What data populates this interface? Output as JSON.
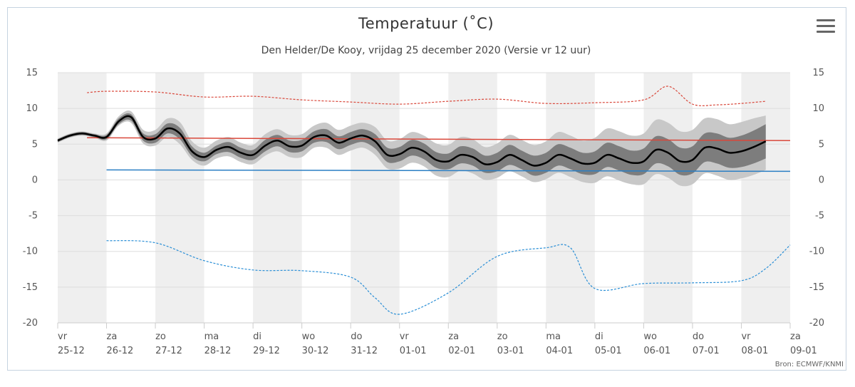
{
  "header": {
    "title": "Temperatuur (˚C)",
    "subtitle": "Den Helder/De Kooy, vrijdag 25 december 2020 (Versie vr 12 uur)"
  },
  "footer": {
    "source": "Bron: ECMWF/KNMI"
  },
  "colors": {
    "ens_outer": "#c8c8c8",
    "ens_inner": "#7d7d7d",
    "median": "#000000",
    "max_record": "#d9483b",
    "min_record": "#2b8fd6",
    "normal_max": "#d9483b",
    "normal_min": "#2b7fc4",
    "shade": "#efefef"
  },
  "chart_data": {
    "type": "line",
    "title": "Temperatuur (˚C)",
    "subtitle": "Den Helder/De Kooy, vrijdag 25 december 2020 (Versie vr 12 uur)",
    "ylim": [
      -20,
      15
    ],
    "yticks": [
      15,
      10,
      5,
      0,
      -5,
      -10,
      -15,
      -20
    ],
    "xlim": [
      0,
      15
    ],
    "xticks": [
      {
        "day": "vr",
        "date": "25-12"
      },
      {
        "day": "za",
        "date": "26-12"
      },
      {
        "day": "zo",
        "date": "27-12"
      },
      {
        "day": "ma",
        "date": "28-12"
      },
      {
        "day": "di",
        "date": "29-12"
      },
      {
        "day": "wo",
        "date": "30-12"
      },
      {
        "day": "do",
        "date": "31-12"
      },
      {
        "day": "vr",
        "date": "01-01"
      },
      {
        "day": "za",
        "date": "02-01"
      },
      {
        "day": "zo",
        "date": "03-01"
      },
      {
        "day": "ma",
        "date": "04-01"
      },
      {
        "day": "di",
        "date": "05-01"
      },
      {
        "day": "wo",
        "date": "06-01"
      },
      {
        "day": "do",
        "date": "07-01"
      },
      {
        "day": "vr",
        "date": "08-01"
      },
      {
        "day": "za",
        "date": "09-01"
      }
    ],
    "weekend_shaded_days": [
      0,
      2,
      4,
      6,
      8,
      10,
      12,
      14
    ],
    "series": [
      {
        "key": "median",
        "x": [
          0,
          0.25,
          0.5,
          0.75,
          1,
          1.25,
          1.5,
          1.75,
          2,
          2.25,
          2.5,
          2.75,
          3,
          3.25,
          3.5,
          3.75,
          4,
          4.25,
          4.5,
          4.75,
          5,
          5.25,
          5.5,
          5.75,
          6,
          6.25,
          6.5,
          6.75,
          7,
          7.25,
          7.5,
          7.75,
          8,
          8.25,
          8.5,
          8.75,
          9,
          9.25,
          9.5,
          9.75,
          10,
          10.25,
          10.5,
          10.75,
          11,
          11.25,
          11.5,
          11.75,
          12,
          12.25,
          12.5,
          12.75,
          13,
          13.25,
          13.5,
          13.75,
          14,
          14.25,
          14.5
        ],
        "values": [
          5.5,
          6.2,
          6.5,
          6.2,
          6.0,
          8.2,
          8.8,
          6.0,
          5.8,
          7.2,
          6.5,
          4.0,
          3.2,
          4.2,
          4.6,
          3.8,
          3.5,
          4.8,
          5.5,
          4.7,
          4.8,
          6.0,
          6.2,
          5.2,
          5.8,
          6.2,
          5.4,
          3.5,
          3.6,
          4.5,
          4.0,
          2.8,
          2.6,
          3.5,
          3.2,
          2.2,
          2.5,
          3.5,
          2.8,
          2.0,
          2.4,
          3.5,
          3.0,
          2.3,
          2.4,
          3.5,
          3.0,
          2.4,
          2.6,
          4.2,
          3.8,
          2.6,
          2.8,
          4.5,
          4.4,
          3.8,
          4.0,
          4.6,
          5.4
        ]
      },
      {
        "key": "ens_inner_low",
        "x": [
          0,
          0.25,
          0.5,
          0.75,
          1,
          1.25,
          1.5,
          1.75,
          2,
          2.25,
          2.5,
          2.75,
          3,
          3.25,
          3.5,
          3.75,
          4,
          4.25,
          4.5,
          4.75,
          5,
          5.25,
          5.5,
          5.75,
          6,
          6.25,
          6.5,
          6.75,
          7,
          7.25,
          7.5,
          7.75,
          8,
          8.25,
          8.5,
          8.75,
          9,
          9.25,
          9.5,
          9.75,
          10,
          10.25,
          10.5,
          10.75,
          11,
          11.25,
          11.5,
          11.75,
          12,
          12.25,
          12.5,
          12.75,
          13,
          13.25,
          13.5,
          13.75,
          14,
          14.25,
          14.5
        ],
        "values": [
          5.3,
          6.0,
          6.3,
          6.0,
          5.7,
          7.8,
          8.3,
          5.5,
          5.2,
          6.5,
          5.7,
          3.3,
          2.6,
          3.6,
          3.9,
          3.1,
          2.8,
          4.0,
          4.7,
          3.9,
          4.0,
          5.2,
          5.3,
          4.3,
          4.9,
          5.3,
          4.4,
          2.5,
          2.6,
          3.4,
          2.9,
          1.7,
          1.5,
          2.3,
          2.0,
          1.0,
          1.2,
          2.1,
          1.5,
          0.6,
          1.0,
          2.0,
          1.5,
          0.8,
          0.8,
          1.8,
          1.3,
          0.7,
          0.8,
          2.3,
          1.9,
          0.7,
          0.9,
          2.5,
          2.3,
          1.7,
          1.8,
          2.3,
          3.0
        ]
      },
      {
        "key": "ens_inner_high",
        "x": [
          0,
          0.25,
          0.5,
          0.75,
          1,
          1.25,
          1.5,
          1.75,
          2,
          2.25,
          2.5,
          2.75,
          3,
          3.25,
          3.5,
          3.75,
          4,
          4.25,
          4.5,
          4.75,
          5,
          5.25,
          5.5,
          5.75,
          6,
          6.25,
          6.5,
          6.75,
          7,
          7.25,
          7.5,
          7.75,
          8,
          8.25,
          8.5,
          8.75,
          9,
          9.25,
          9.5,
          9.75,
          10,
          10.25,
          10.5,
          10.75,
          11,
          11.25,
          11.5,
          11.75,
          12,
          12.25,
          12.5,
          12.75,
          13,
          13.25,
          13.5,
          13.75,
          14,
          14.25,
          14.5
        ],
        "values": [
          5.7,
          6.4,
          6.7,
          6.4,
          6.3,
          8.6,
          9.2,
          6.5,
          6.4,
          7.9,
          7.3,
          4.7,
          3.8,
          4.8,
          5.3,
          4.5,
          4.2,
          5.6,
          6.3,
          5.5,
          5.6,
          6.8,
          7.1,
          6.1,
          6.7,
          7.1,
          6.4,
          4.5,
          4.6,
          5.6,
          5.1,
          3.9,
          3.7,
          4.7,
          4.4,
          3.4,
          3.8,
          4.9,
          4.1,
          3.4,
          3.8,
          5.0,
          4.5,
          3.8,
          4.0,
          5.2,
          4.7,
          4.1,
          4.4,
          6.1,
          5.7,
          4.5,
          4.7,
          6.5,
          6.5,
          5.9,
          6.2,
          6.9,
          7.8
        ]
      },
      {
        "key": "ens_outer_low",
        "x": [
          0,
          0.25,
          0.5,
          0.75,
          1,
          1.25,
          1.5,
          1.75,
          2,
          2.25,
          2.5,
          2.75,
          3,
          3.25,
          3.5,
          3.75,
          4,
          4.25,
          4.5,
          4.75,
          5,
          5.25,
          5.5,
          5.75,
          6,
          6.25,
          6.5,
          6.75,
          7,
          7.25,
          7.5,
          7.75,
          8,
          8.25,
          8.5,
          8.75,
          9,
          9.25,
          9.5,
          9.75,
          10,
          10.25,
          10.5,
          10.75,
          11,
          11.25,
          11.5,
          11.75,
          12,
          12.25,
          12.5,
          12.75,
          13,
          13.25,
          13.5,
          13.75,
          14,
          14.25,
          14.5
        ],
        "values": [
          5.2,
          5.9,
          6.2,
          5.9,
          5.5,
          7.6,
          8.0,
          5.1,
          4.8,
          6.0,
          5.0,
          2.8,
          2.0,
          3.0,
          3.3,
          2.5,
          2.2,
          3.4,
          4.0,
          3.2,
          3.2,
          4.5,
          4.5,
          3.5,
          4.1,
          4.5,
          3.5,
          1.6,
          1.6,
          2.4,
          1.9,
          0.6,
          0.4,
          1.3,
          0.9,
          0.0,
          0.3,
          1.2,
          0.5,
          -0.3,
          0.1,
          1.0,
          0.4,
          -0.3,
          -0.4,
          0.5,
          -0.1,
          -0.6,
          -0.6,
          0.8,
          0.3,
          -0.8,
          -0.6,
          0.9,
          0.6,
          0.0,
          0.2,
          0.7,
          1.4
        ]
      },
      {
        "key": "ens_outer_high",
        "x": [
          0,
          0.25,
          0.5,
          0.75,
          1,
          1.25,
          1.5,
          1.75,
          2,
          2.25,
          2.5,
          2.75,
          3,
          3.25,
          3.5,
          3.75,
          4,
          4.25,
          4.5,
          4.75,
          5,
          5.25,
          5.5,
          5.75,
          6,
          6.25,
          6.5,
          6.75,
          7,
          7.25,
          7.5,
          7.75,
          8,
          8.25,
          8.5,
          8.75,
          9,
          9.25,
          9.5,
          9.75,
          10,
          10.25,
          10.5,
          10.75,
          11,
          11.25,
          11.5,
          11.75,
          12,
          12.25,
          12.5,
          12.75,
          13,
          13.25,
          13.5,
          13.75,
          14,
          14.25,
          14.5
        ],
        "values": [
          5.8,
          6.5,
          6.8,
          6.5,
          6.5,
          8.9,
          9.6,
          7.0,
          7.0,
          8.6,
          8.1,
          5.4,
          4.5,
          5.5,
          6.0,
          5.2,
          4.9,
          6.4,
          7.1,
          6.3,
          6.4,
          7.6,
          8.0,
          7.0,
          7.6,
          8.0,
          7.4,
          5.5,
          5.7,
          6.7,
          6.2,
          5.1,
          4.9,
          6.0,
          5.7,
          4.6,
          5.1,
          6.3,
          5.6,
          4.9,
          5.4,
          6.7,
          6.2,
          5.5,
          5.9,
          7.2,
          6.8,
          6.2,
          6.5,
          8.4,
          8.0,
          6.8,
          7.0,
          8.6,
          8.5,
          7.8,
          8.1,
          8.6,
          9.0
        ]
      },
      {
        "key": "max_record",
        "x": [
          0.6,
          1,
          2,
          3,
          4,
          5,
          6,
          7,
          8,
          9,
          10,
          11,
          12,
          12.5,
          13,
          13.5,
          14,
          14.5
        ],
        "values": [
          12.2,
          12.4,
          12.3,
          11.6,
          11.7,
          11.2,
          10.9,
          10.6,
          11.0,
          11.3,
          10.7,
          10.8,
          11.2,
          13.1,
          10.6,
          10.5,
          10.7,
          11.0
        ]
      },
      {
        "key": "min_record",
        "x": [
          1,
          2,
          3,
          4,
          5,
          6,
          6.5,
          7,
          8,
          9,
          10,
          10.5,
          11,
          12,
          13,
          14,
          14.5,
          15
        ],
        "values": [
          -8.5,
          -8.8,
          -11.3,
          -12.6,
          -12.7,
          -13.6,
          -16.5,
          -18.8,
          -15.8,
          -10.7,
          -9.5,
          -9.5,
          -15.2,
          -14.5,
          -14.4,
          -14.1,
          -12.4,
          -9.1
        ]
      },
      {
        "key": "normal_max",
        "x": [
          0.6,
          15
        ],
        "values": [
          5.9,
          5.5
        ]
      },
      {
        "key": "normal_min",
        "x": [
          1,
          15
        ],
        "values": [
          1.4,
          1.2
        ]
      }
    ]
  }
}
